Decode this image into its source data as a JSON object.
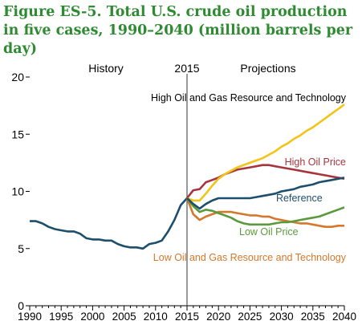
{
  "chart_data": {
    "type": "line",
    "title": "Figure ES-5. Total U.S. crude oil production in five cases, 1990–2040 (million barrels per day)",
    "xlabel": "",
    "ylabel": "",
    "xlim": [
      1990,
      2040
    ],
    "ylim": [
      0,
      20
    ],
    "x_ticks": [
      1990,
      1995,
      2000,
      2005,
      2010,
      2015,
      2020,
      2025,
      2030,
      2035,
      2040
    ],
    "y_ticks": [
      0,
      5,
      10,
      15,
      20
    ],
    "grid": false,
    "annotations": {
      "history": "History",
      "divider_year": "2015",
      "projections": "Projections"
    },
    "history": {
      "color": "#1d4e6b",
      "x": [
        1990,
        1991,
        1992,
        1993,
        1994,
        1995,
        1996,
        1997,
        1998,
        1999,
        2000,
        2001,
        2002,
        2003,
        2004,
        2005,
        2006,
        2007,
        2008,
        2009,
        2010,
        2011,
        2012,
        2013,
        2014,
        2015
      ],
      "values": [
        7.4,
        7.4,
        7.2,
        6.9,
        6.7,
        6.6,
        6.5,
        6.5,
        6.3,
        5.9,
        5.8,
        5.8,
        5.7,
        5.7,
        5.4,
        5.2,
        5.1,
        5.1,
        5.0,
        5.4,
        5.5,
        5.7,
        6.5,
        7.5,
        8.8,
        9.4
      ]
    },
    "series": [
      {
        "name": "High Oil and Gas Resource and Technology",
        "color": "#f2c318",
        "x": [
          2015,
          2016,
          2017,
          2018,
          2019,
          2020,
          2021,
          2022,
          2023,
          2024,
          2025,
          2026,
          2027,
          2028,
          2029,
          2030,
          2031,
          2032,
          2033,
          2034,
          2035,
          2036,
          2037,
          2038,
          2039,
          2040
        ],
        "values": [
          9.4,
          9.2,
          9.2,
          9.8,
          10.5,
          11.1,
          11.5,
          11.8,
          12.1,
          12.3,
          12.5,
          12.7,
          12.9,
          13.2,
          13.5,
          13.9,
          14.2,
          14.6,
          14.9,
          15.3,
          15.6,
          16.0,
          16.4,
          16.8,
          17.2,
          17.6
        ]
      },
      {
        "name": "High Oil Price",
        "color": "#a8343c",
        "x": [
          2015,
          2016,
          2017,
          2018,
          2019,
          2020,
          2021,
          2022,
          2023,
          2024,
          2025,
          2026,
          2027,
          2028,
          2029,
          2030,
          2031,
          2032,
          2033,
          2034,
          2035,
          2036,
          2037,
          2038,
          2039,
          2040
        ],
        "values": [
          9.4,
          10.1,
          10.2,
          10.8,
          11.0,
          11.2,
          11.5,
          11.7,
          11.9,
          12.0,
          12.1,
          12.2,
          12.3,
          12.3,
          12.2,
          12.1,
          12.0,
          11.9,
          11.8,
          11.7,
          11.6,
          11.5,
          11.4,
          11.3,
          11.2,
          11.1
        ]
      },
      {
        "name": "Reference",
        "color": "#1d4e6b",
        "x": [
          2015,
          2016,
          2017,
          2018,
          2019,
          2020,
          2021,
          2022,
          2023,
          2024,
          2025,
          2026,
          2027,
          2028,
          2029,
          2030,
          2031,
          2032,
          2033,
          2034,
          2035,
          2036,
          2037,
          2038,
          2039,
          2040
        ],
        "values": [
          9.4,
          8.9,
          8.5,
          8.9,
          9.2,
          9.4,
          9.4,
          9.4,
          9.4,
          9.4,
          9.4,
          9.5,
          9.6,
          9.7,
          9.8,
          10.0,
          10.1,
          10.2,
          10.4,
          10.5,
          10.6,
          10.8,
          10.9,
          11.0,
          11.1,
          11.2
        ]
      },
      {
        "name": "Low Oil Price",
        "color": "#5a9a3c",
        "x": [
          2015,
          2016,
          2017,
          2018,
          2019,
          2020,
          2021,
          2022,
          2023,
          2024,
          2025,
          2026,
          2027,
          2028,
          2029,
          2030,
          2031,
          2032,
          2033,
          2034,
          2035,
          2036,
          2037,
          2038,
          2039,
          2040
        ],
        "values": [
          9.4,
          8.7,
          8.2,
          8.4,
          8.3,
          8.1,
          7.9,
          7.7,
          7.4,
          7.2,
          7.1,
          7.1,
          7.1,
          7.1,
          7.2,
          7.3,
          7.3,
          7.4,
          7.5,
          7.6,
          7.7,
          7.8,
          8.0,
          8.2,
          8.4,
          8.6
        ]
      },
      {
        "name": "Low Oil and Gas Resource and Technology",
        "color": "#d4782c",
        "x": [
          2015,
          2016,
          2017,
          2018,
          2019,
          2020,
          2021,
          2022,
          2023,
          2024,
          2025,
          2026,
          2027,
          2028,
          2029,
          2030,
          2031,
          2032,
          2033,
          2034,
          2035,
          2036,
          2037,
          2038,
          2039,
          2040
        ],
        "values": [
          9.4,
          8.0,
          7.5,
          7.8,
          8.0,
          8.2,
          8.2,
          8.2,
          8.1,
          8.0,
          7.9,
          7.9,
          7.8,
          7.8,
          7.6,
          7.5,
          7.4,
          7.3,
          7.2,
          7.2,
          7.1,
          7.0,
          6.9,
          6.9,
          7.0,
          7.0
        ]
      }
    ]
  }
}
